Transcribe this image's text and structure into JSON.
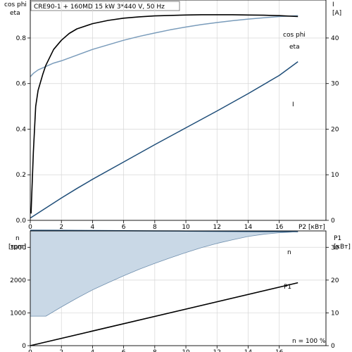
{
  "title": "CRE90-1 + 160MD   15 kW   3*440 V, 50 Hz",
  "footnote": "n = 100 %",
  "chart_data": [
    {
      "type": "line",
      "x_label": "P2 [кВт]",
      "x_ticks": [
        0,
        2,
        4,
        6,
        8,
        10,
        12,
        14,
        16
      ],
      "xlim": [
        0,
        19
      ],
      "left_axis": {
        "label_line1": "cos phi",
        "label_line2": "eta",
        "ticks": [
          "0.0",
          "0.2",
          "0.4",
          "0.6",
          "0.8"
        ],
        "tick_values": [
          0,
          0.2,
          0.4,
          0.6,
          0.8
        ],
        "ylim": [
          0,
          0.9667
        ]
      },
      "right_axis": {
        "label_line1": "I",
        "label_line2": "[A]",
        "ticks": [
          "0",
          "10",
          "20",
          "30",
          "40"
        ],
        "tick_values": [
          0,
          10,
          20,
          30,
          40
        ],
        "ylim": [
          0,
          48.33
        ]
      },
      "series": [
        {
          "name": "cos phi",
          "axis": "left",
          "color": "#7a9cbb",
          "x": [
            0,
            0.2,
            0.5,
            1,
            1.5,
            2,
            3,
            4,
            5,
            6,
            7,
            8,
            9,
            10,
            11,
            12,
            13,
            14,
            15,
            16,
            17.2
          ],
          "y": [
            0.63,
            0.645,
            0.66,
            0.675,
            0.69,
            0.7,
            0.725,
            0.75,
            0.77,
            0.79,
            0.807,
            0.822,
            0.836,
            0.848,
            0.859,
            0.868,
            0.876,
            0.883,
            0.889,
            0.894,
            0.898
          ]
        },
        {
          "name": "eta",
          "axis": "left",
          "color": "#000000",
          "x": [
            0.05,
            0.2,
            0.35,
            0.5,
            0.8,
            1,
            1.5,
            2,
            2.5,
            3,
            4,
            5,
            6,
            7,
            8,
            9,
            10,
            11,
            12,
            13,
            14,
            15,
            16,
            17.2
          ],
          "y": [
            0.03,
            0.3,
            0.5,
            0.57,
            0.64,
            0.68,
            0.75,
            0.79,
            0.82,
            0.84,
            0.863,
            0.877,
            0.887,
            0.893,
            0.897,
            0.899,
            0.901,
            0.902,
            0.902,
            0.902,
            0.901,
            0.9,
            0.898,
            0.894
          ]
        },
        {
          "name": "I",
          "axis": "right",
          "color": "#1f4e79",
          "x": [
            0,
            1,
            2,
            3,
            4,
            6,
            8,
            10,
            12,
            14,
            16,
            17.2
          ],
          "y": [
            0.5,
            2.7,
            4.9,
            7.0,
            9.0,
            12.8,
            16.6,
            20.3,
            24.0,
            27.8,
            31.8,
            34.8
          ]
        }
      ]
    },
    {
      "type": "line",
      "x_ticks": [
        0,
        2,
        4,
        6,
        8,
        10,
        12,
        14,
        16
      ],
      "xlim": [
        0,
        19
      ],
      "left_axis": {
        "label_line1": "n",
        "label_line2": "[rpm]",
        "ticks": [
          "0",
          "1000",
          "2000",
          "3000"
        ],
        "tick_values": [
          0,
          1000,
          2000,
          3000
        ],
        "ylim": [
          0,
          3500
        ]
      },
      "right_axis": {
        "label_line1": "P1",
        "label_line2": "[кВт]",
        "ticks": [
          "0",
          "10",
          "20",
          "30"
        ],
        "tick_values": [
          0,
          10,
          20,
          30
        ],
        "ylim": [
          0,
          35
        ]
      },
      "series": [
        {
          "name": "n",
          "axis": "left",
          "color": "#1f4e79",
          "x": [
            0,
            2,
            4,
            6,
            8,
            10,
            12,
            14,
            16,
            17.2
          ],
          "y": [
            3520,
            3515,
            3510,
            3505,
            3500,
            3495,
            3490,
            3485,
            3480,
            3475
          ]
        },
        {
          "name": "n min",
          "axis": "left",
          "color": "#6f8fae",
          "x": [
            0,
            1,
            2,
            3,
            4,
            5,
            6,
            7,
            8,
            9,
            10,
            11,
            12,
            13,
            14,
            15,
            16,
            17.2
          ],
          "y": [
            900,
            900,
            1180,
            1450,
            1700,
            1920,
            2130,
            2330,
            2510,
            2680,
            2840,
            2990,
            3120,
            3230,
            3330,
            3400,
            3445,
            3475
          ]
        },
        {
          "name": "P1",
          "axis": "right",
          "color": "#000000",
          "x": [
            0,
            17.2
          ],
          "y": [
            0,
            19.2
          ]
        }
      ]
    }
  ]
}
